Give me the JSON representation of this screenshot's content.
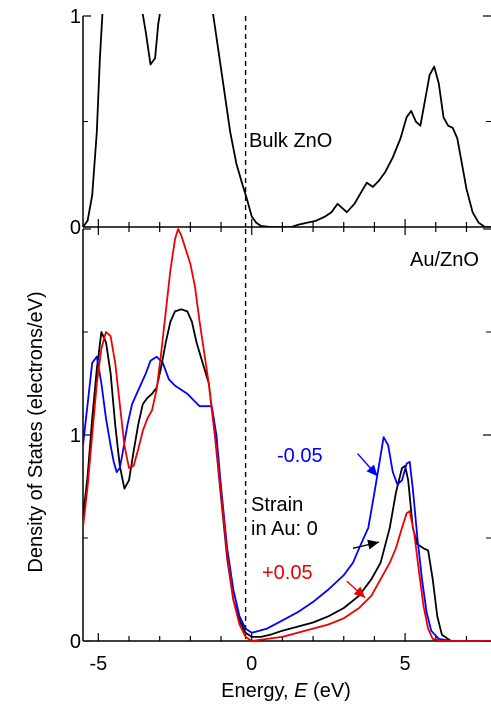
{
  "chart_data": {
    "type": "line",
    "xlabel_prefix": "Energy, ",
    "xlabel_var": "E",
    "xlabel_unit": " (eV)",
    "ylabel": "Density of States (electrons/eV)",
    "xlim": [
      -5.5,
      7.8
    ],
    "x_ticks": [
      -5,
      0,
      5
    ],
    "fermi_level": -0.2,
    "panels": [
      {
        "label": "Bulk ZnO",
        "ylim": [
          0,
          1
        ],
        "y_ticks": [
          0,
          1
        ],
        "y_tick_labels": [
          "0",
          "1"
        ],
        "series": [
          {
            "name": "Bulk ZnO",
            "color": "#000000",
            "points": [
              [
                -5.5,
                0.0
              ],
              [
                -5.35,
                0.03
              ],
              [
                -5.2,
                0.15
              ],
              [
                -5.05,
                0.45
              ],
              [
                -4.95,
                0.8
              ],
              [
                -4.85,
                1.05
              ],
              [
                -3.6,
                1.05
              ],
              [
                -3.45,
                0.92
              ],
              [
                -3.3,
                0.77
              ],
              [
                -3.15,
                0.8
              ],
              [
                -3.05,
                0.96
              ],
              [
                -2.95,
                1.05
              ],
              [
                -1.3,
                1.05
              ],
              [
                -1.1,
                0.85
              ],
              [
                -0.9,
                0.65
              ],
              [
                -0.7,
                0.45
              ],
              [
                -0.5,
                0.3
              ],
              [
                -0.3,
                0.2
              ],
              [
                -0.15,
                0.13
              ],
              [
                0.0,
                0.05
              ],
              [
                0.15,
                0.02
              ],
              [
                0.3,
                0.005
              ],
              [
                0.6,
                0.0
              ],
              [
                1.3,
                0.0
              ],
              [
                1.5,
                0.01
              ],
              [
                1.8,
                0.02
              ],
              [
                2.1,
                0.03
              ],
              [
                2.4,
                0.05
              ],
              [
                2.6,
                0.07
              ],
              [
                2.8,
                0.11
              ],
              [
                2.95,
                0.09
              ],
              [
                3.1,
                0.07
              ],
              [
                3.35,
                0.11
              ],
              [
                3.55,
                0.16
              ],
              [
                3.75,
                0.21
              ],
              [
                3.95,
                0.19
              ],
              [
                4.15,
                0.22
              ],
              [
                4.35,
                0.26
              ],
              [
                4.6,
                0.33
              ],
              [
                4.85,
                0.42
              ],
              [
                5.05,
                0.52
              ],
              [
                5.2,
                0.55
              ],
              [
                5.35,
                0.5
              ],
              [
                5.5,
                0.48
              ],
              [
                5.65,
                0.6
              ],
              [
                5.8,
                0.72
              ],
              [
                5.95,
                0.76
              ],
              [
                6.1,
                0.68
              ],
              [
                6.25,
                0.52
              ],
              [
                6.4,
                0.48
              ],
              [
                6.55,
                0.47
              ],
              [
                6.7,
                0.42
              ],
              [
                6.85,
                0.3
              ],
              [
                7.0,
                0.18
              ],
              [
                7.2,
                0.07
              ],
              [
                7.4,
                0.02
              ],
              [
                7.6,
                0.0
              ],
              [
                7.8,
                0.0
              ]
            ]
          }
        ]
      },
      {
        "label": "Au/ZnO",
        "ylim": [
          0,
          2
        ],
        "y_ticks": [
          0,
          1,
          2
        ],
        "y_tick_labels": [
          "0",
          "1",
          ""
        ],
        "series": [
          {
            "name": "0",
            "color": "#000000",
            "points": [
              [
                -5.5,
                0.6
              ],
              [
                -5.35,
                0.8
              ],
              [
                -5.2,
                1.08
              ],
              [
                -5.05,
                1.32
              ],
              [
                -4.9,
                1.5
              ],
              [
                -4.75,
                1.45
              ],
              [
                -4.6,
                1.3
              ],
              [
                -4.45,
                1.05
              ],
              [
                -4.3,
                0.85
              ],
              [
                -4.15,
                0.74
              ],
              [
                -4.0,
                0.78
              ],
              [
                -3.85,
                0.92
              ],
              [
                -3.7,
                1.05
              ],
              [
                -3.55,
                1.15
              ],
              [
                -3.4,
                1.18
              ],
              [
                -3.25,
                1.2
              ],
              [
                -3.1,
                1.23
              ],
              [
                -2.95,
                1.33
              ],
              [
                -2.8,
                1.45
              ],
              [
                -2.65,
                1.55
              ],
              [
                -2.5,
                1.6
              ],
              [
                -2.3,
                1.61
              ],
              [
                -2.1,
                1.6
              ],
              [
                -1.95,
                1.55
              ],
              [
                -1.8,
                1.45
              ],
              [
                -1.6,
                1.35
              ],
              [
                -1.4,
                1.25
              ],
              [
                -1.2,
                1.0
              ],
              [
                -1.0,
                0.7
              ],
              [
                -0.8,
                0.4
              ],
              [
                -0.6,
                0.2
              ],
              [
                -0.4,
                0.1
              ],
              [
                -0.2,
                0.04
              ],
              [
                0.0,
                0.02
              ],
              [
                0.3,
                0.02
              ],
              [
                0.6,
                0.03
              ],
              [
                1.0,
                0.05
              ],
              [
                1.5,
                0.07
              ],
              [
                2.0,
                0.09
              ],
              [
                2.5,
                0.12
              ],
              [
                3.0,
                0.16
              ],
              [
                3.5,
                0.22
              ],
              [
                3.9,
                0.3
              ],
              [
                4.2,
                0.38
              ],
              [
                4.5,
                0.55
              ],
              [
                4.7,
                0.72
              ],
              [
                4.9,
                0.84
              ],
              [
                5.0,
                0.85
              ],
              [
                5.1,
                0.78
              ],
              [
                5.25,
                0.55
              ],
              [
                5.4,
                0.47
              ],
              [
                5.6,
                0.45
              ],
              [
                5.75,
                0.44
              ],
              [
                5.9,
                0.3
              ],
              [
                6.05,
                0.12
              ],
              [
                6.2,
                0.03
              ],
              [
                6.5,
                0.0
              ],
              [
                7.8,
                0.0
              ]
            ]
          },
          {
            "name": "-0.05",
            "color": "#0000ff",
            "points": [
              [
                -5.5,
                0.95
              ],
              [
                -5.35,
                1.15
              ],
              [
                -5.2,
                1.35
              ],
              [
                -5.05,
                1.38
              ],
              [
                -4.9,
                1.25
              ],
              [
                -4.75,
                1.08
              ],
              [
                -4.6,
                0.95
              ],
              [
                -4.5,
                0.87
              ],
              [
                -4.4,
                0.82
              ],
              [
                -4.3,
                0.84
              ],
              [
                -4.2,
                0.92
              ],
              [
                -4.05,
                1.05
              ],
              [
                -3.9,
                1.15
              ],
              [
                -3.75,
                1.2
              ],
              [
                -3.6,
                1.25
              ],
              [
                -3.45,
                1.3
              ],
              [
                -3.3,
                1.36
              ],
              [
                -3.1,
                1.38
              ],
              [
                -2.9,
                1.35
              ],
              [
                -2.7,
                1.27
              ],
              [
                -2.5,
                1.24
              ],
              [
                -2.3,
                1.22
              ],
              [
                -2.1,
                1.2
              ],
              [
                -1.9,
                1.17
              ],
              [
                -1.7,
                1.14
              ],
              [
                -1.5,
                1.14
              ],
              [
                -1.3,
                1.14
              ],
              [
                -1.15,
                1.0
              ],
              [
                -1.0,
                0.75
              ],
              [
                -0.8,
                0.45
              ],
              [
                -0.6,
                0.25
              ],
              [
                -0.4,
                0.12
              ],
              [
                -0.2,
                0.06
              ],
              [
                0.0,
                0.04
              ],
              [
                0.5,
                0.06
              ],
              [
                1.0,
                0.1
              ],
              [
                1.5,
                0.14
              ],
              [
                2.0,
                0.19
              ],
              [
                2.5,
                0.25
              ],
              [
                3.0,
                0.32
              ],
              [
                3.3,
                0.38
              ],
              [
                3.5,
                0.45
              ],
              [
                3.8,
                0.55
              ],
              [
                4.0,
                0.72
              ],
              [
                4.2,
                0.9
              ],
              [
                4.3,
                0.99
              ],
              [
                4.45,
                0.95
              ],
              [
                4.6,
                0.82
              ],
              [
                4.75,
                0.76
              ],
              [
                4.9,
                0.78
              ],
              [
                5.05,
                0.86
              ],
              [
                5.15,
                0.87
              ],
              [
                5.25,
                0.74
              ],
              [
                5.4,
                0.5
              ],
              [
                5.55,
                0.3
              ],
              [
                5.7,
                0.14
              ],
              [
                5.85,
                0.05
              ],
              [
                6.1,
                0.01
              ],
              [
                6.5,
                0.0
              ],
              [
                7.8,
                0.0
              ]
            ]
          },
          {
            "name": "+0.05",
            "color": "#ee0000",
            "points": [
              [
                -5.5,
                0.55
              ],
              [
                -5.35,
                0.75
              ],
              [
                -5.2,
                1.0
              ],
              [
                -5.05,
                1.25
              ],
              [
                -4.9,
                1.42
              ],
              [
                -4.75,
                1.5
              ],
              [
                -4.6,
                1.48
              ],
              [
                -4.45,
                1.35
              ],
              [
                -4.3,
                1.15
              ],
              [
                -4.15,
                0.95
              ],
              [
                -4.0,
                0.84
              ],
              [
                -3.85,
                0.85
              ],
              [
                -3.7,
                0.93
              ],
              [
                -3.55,
                1.02
              ],
              [
                -3.4,
                1.08
              ],
              [
                -3.25,
                1.12
              ],
              [
                -3.1,
                1.22
              ],
              [
                -2.95,
                1.4
              ],
              [
                -2.8,
                1.6
              ],
              [
                -2.65,
                1.8
              ],
              [
                -2.5,
                1.95
              ],
              [
                -2.4,
                2.0
              ],
              [
                -2.3,
                1.97
              ],
              [
                -2.15,
                1.9
              ],
              [
                -2.0,
                1.83
              ],
              [
                -1.85,
                1.72
              ],
              [
                -1.7,
                1.55
              ],
              [
                -1.55,
                1.4
              ],
              [
                -1.4,
                1.25
              ],
              [
                -1.2,
                1.0
              ],
              [
                -1.0,
                0.72
              ],
              [
                -0.8,
                0.42
              ],
              [
                -0.6,
                0.2
              ],
              [
                -0.4,
                0.08
              ],
              [
                -0.2,
                0.02
              ],
              [
                0.0,
                0.0
              ],
              [
                0.5,
                0.01
              ],
              [
                1.0,
                0.02
              ],
              [
                1.5,
                0.04
              ],
              [
                2.0,
                0.06
              ],
              [
                2.5,
                0.08
              ],
              [
                3.0,
                0.11
              ],
              [
                3.5,
                0.16
              ],
              [
                3.9,
                0.22
              ],
              [
                4.2,
                0.3
              ],
              [
                4.5,
                0.38
              ],
              [
                4.7,
                0.45
              ],
              [
                4.9,
                0.55
              ],
              [
                5.05,
                0.62
              ],
              [
                5.15,
                0.63
              ],
              [
                5.3,
                0.52
              ],
              [
                5.45,
                0.34
              ],
              [
                5.6,
                0.17
              ],
              [
                5.75,
                0.06
              ],
              [
                5.9,
                0.01
              ],
              [
                6.2,
                0.0
              ],
              [
                7.8,
                0.0
              ]
            ]
          }
        ]
      }
    ],
    "annotations": {
      "strain_title": "Strain",
      "strain_prefix": "in Au: ",
      "strain_zero": "0",
      "minus": "-0.05",
      "plus": "+0.05"
    }
  }
}
